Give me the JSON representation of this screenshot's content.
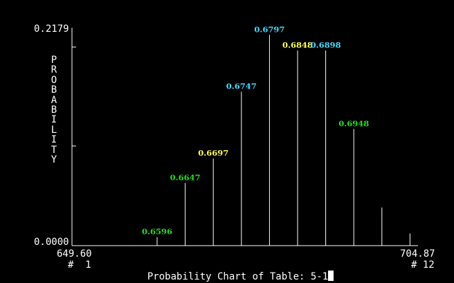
{
  "chart_data": {
    "type": "bar",
    "title": "Probability Chart of Table: 5-1",
    "ylabel": "PROBABILITY",
    "ylim": [
      0.0,
      0.2179
    ],
    "y_tick_labels": [
      "0.2179",
      "0.0000"
    ],
    "x_range": [
      "649.60",
      "704.87"
    ],
    "x_index_labels": [
      "#  1",
      "# 12"
    ],
    "bar_labels": [
      "0.6596",
      "0.6647",
      "0.6697",
      "0.6747",
      "0.6797",
      "0.6848",
      "0.6898",
      "0.6948",
      "",
      ""
    ],
    "label_colors": [
      "#22dd22",
      "#22dd22",
      "#ffff44",
      "#44ddff",
      "#44ddff",
      "#ffff44",
      "#44ddff",
      "#22dd22",
      "",
      ""
    ],
    "values": [
      0.0085,
      0.0627,
      0.0871,
      0.1539,
      0.2108,
      0.1951,
      0.1951,
      0.1167,
      0.0381,
      0.0121
    ],
    "colors": {
      "background": "#000000",
      "axis": "#ffffff",
      "bars": "#ffffff"
    }
  }
}
